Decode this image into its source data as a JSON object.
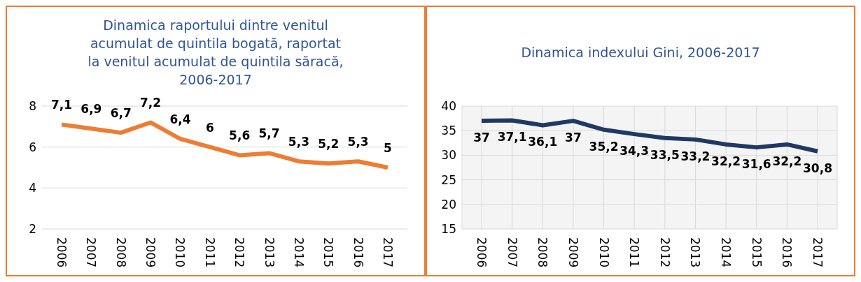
{
  "chart_data": [
    {
      "type": "line",
      "title": "Dinamica raportului dintre venitul acumulat de quintila bogată, raportat la venitul acumulat de quintila săracă, 2006-2017",
      "categories": [
        "2006",
        "2007",
        "2008",
        "2009",
        "2010",
        "2011",
        "2012",
        "2013",
        "2014",
        "2015",
        "2016",
        "2017"
      ],
      "series": [
        {
          "color": "#ed7d31",
          "values": [
            7.1,
            6.9,
            6.7,
            7.2,
            6.4,
            6,
            5.6,
            5.7,
            5.3,
            5.2,
            5.3,
            5
          ],
          "value_labels": [
            "7,1",
            "6,9",
            "6,7",
            "7,2",
            "6,4",
            "6",
            "5,6",
            "5,7",
            "5,3",
            "5,2",
            "5,3",
            "5"
          ]
        }
      ],
      "ylim": [
        2,
        8
      ],
      "yticks": [
        2,
        4,
        6,
        8
      ],
      "grid": "y",
      "marker": "none",
      "line_style": "solid"
    },
    {
      "type": "line",
      "title": "Dinamica indexului Gini, 2006-2017",
      "categories": [
        "2006",
        "2007",
        "2008",
        "2009",
        "2010",
        "2011",
        "2012",
        "2013",
        "2014",
        "2015",
        "2016",
        "2017"
      ],
      "series": [
        {
          "color": "#203864",
          "values": [
            37,
            37.1,
            36.1,
            37,
            35.2,
            34.3,
            33.5,
            33.2,
            32.2,
            31.6,
            32.2,
            30.8
          ],
          "value_labels": [
            "37",
            "37,1",
            "36,1",
            "37",
            "35,2",
            "34,3",
            "33,5",
            "33,2",
            "32,2",
            "31,6",
            "32,2",
            "30,8"
          ]
        }
      ],
      "ylim": [
        15,
        40
      ],
      "yticks": [
        15,
        20,
        25,
        30,
        35,
        40
      ],
      "grid": true,
      "marker": "none",
      "line_style": "solid"
    }
  ]
}
